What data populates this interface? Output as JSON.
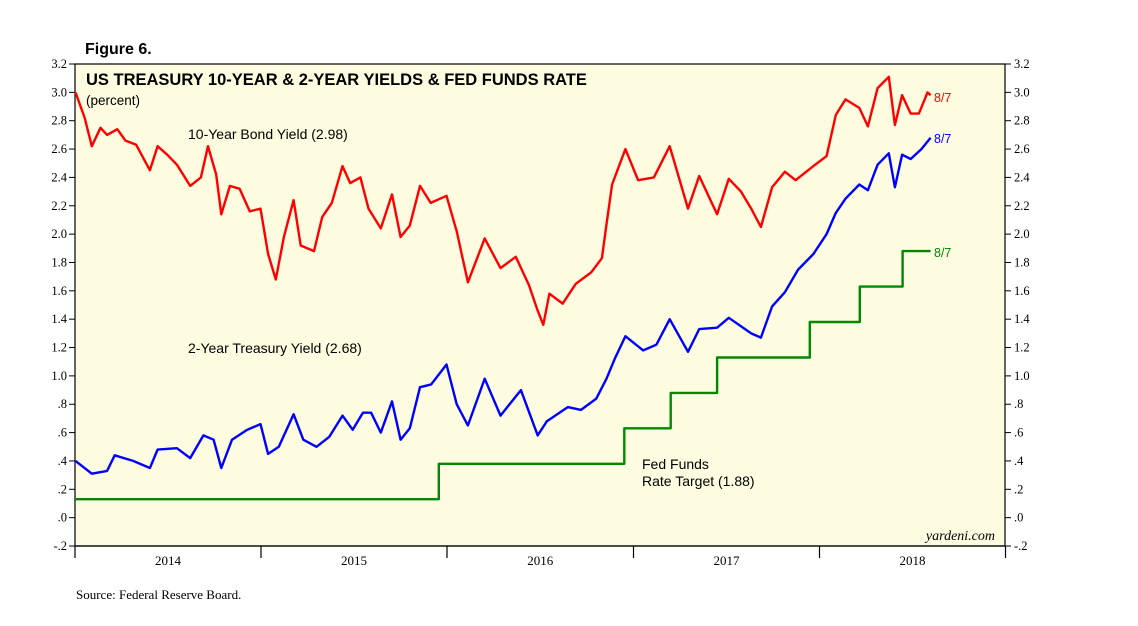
{
  "figure_label": "Figure 6.",
  "source": "Source: Federal Reserve Board.",
  "watermark": "yardeni.com",
  "chart_data": {
    "type": "line",
    "title": "US TREASURY 10-YEAR & 2-YEAR YIELDS & FED FUNDS RATE",
    "subtitle": "(percent)",
    "x_ticks": [
      "2014",
      "2015",
      "2016",
      "2017",
      "2018"
    ],
    "xlim": [
      "2014-01-01",
      "2018-12-31"
    ],
    "ylim": [
      -0.2,
      3.2
    ],
    "y_ticks": [
      3.2,
      3.0,
      2.8,
      2.6,
      2.4,
      2.2,
      2.0,
      1.8,
      1.6,
      1.4,
      1.2,
      1.0,
      0.8,
      0.6,
      0.4,
      0.2,
      0.0,
      -0.2
    ],
    "y_tick_labels": [
      "3.2",
      "3.0",
      "2.8",
      "2.6",
      "2.4",
      "2.2",
      "2.0",
      "1.8",
      "1.6",
      "1.4",
      "1.2",
      "1.0",
      ".8",
      ".6",
      ".4",
      ".2",
      ".0",
      "-.2"
    ],
    "grid": false,
    "background_color": "#fdfce0",
    "series": [
      {
        "name": "10-Year Bond Yield (2.98)",
        "color": "#ff0000",
        "end_label": "8/7",
        "points": [
          [
            "2014-01-02",
            3.0
          ],
          [
            "2014-01-20",
            2.82
          ],
          [
            "2014-02-03",
            2.62
          ],
          [
            "2014-02-20",
            2.75
          ],
          [
            "2014-03-05",
            2.7
          ],
          [
            "2014-03-25",
            2.74
          ],
          [
            "2014-04-10",
            2.66
          ],
          [
            "2014-05-01",
            2.63
          ],
          [
            "2014-05-28",
            2.45
          ],
          [
            "2014-06-12",
            2.62
          ],
          [
            "2014-07-01",
            2.56
          ],
          [
            "2014-07-20",
            2.49
          ],
          [
            "2014-08-15",
            2.34
          ],
          [
            "2014-09-05",
            2.4
          ],
          [
            "2014-09-19",
            2.62
          ],
          [
            "2014-10-05",
            2.42
          ],
          [
            "2014-10-15",
            2.14
          ],
          [
            "2014-11-01",
            2.34
          ],
          [
            "2014-11-20",
            2.32
          ],
          [
            "2014-12-10",
            2.16
          ],
          [
            "2014-12-31",
            2.18
          ],
          [
            "2015-01-15",
            1.86
          ],
          [
            "2015-01-30",
            1.68
          ],
          [
            "2015-02-15",
            1.98
          ],
          [
            "2015-03-06",
            2.24
          ],
          [
            "2015-03-20",
            1.92
          ],
          [
            "2015-04-15",
            1.88
          ],
          [
            "2015-05-01",
            2.12
          ],
          [
            "2015-05-20",
            2.22
          ],
          [
            "2015-06-10",
            2.48
          ],
          [
            "2015-06-25",
            2.36
          ],
          [
            "2015-07-15",
            2.4
          ],
          [
            "2015-07-31",
            2.18
          ],
          [
            "2015-08-24",
            2.04
          ],
          [
            "2015-09-15",
            2.28
          ],
          [
            "2015-10-02",
            1.98
          ],
          [
            "2015-10-20",
            2.06
          ],
          [
            "2015-11-09",
            2.34
          ],
          [
            "2015-11-30",
            2.22
          ],
          [
            "2015-12-31",
            2.27
          ],
          [
            "2016-01-20",
            2.02
          ],
          [
            "2016-02-11",
            1.66
          ],
          [
            "2016-03-15",
            1.97
          ],
          [
            "2016-04-15",
            1.76
          ],
          [
            "2016-05-15",
            1.84
          ],
          [
            "2016-06-10",
            1.64
          ],
          [
            "2016-06-27",
            1.46
          ],
          [
            "2016-07-08",
            1.36
          ],
          [
            "2016-07-20",
            1.58
          ],
          [
            "2016-08-15",
            1.51
          ],
          [
            "2016-09-10",
            1.65
          ],
          [
            "2016-10-10",
            1.73
          ],
          [
            "2016-10-31",
            1.83
          ],
          [
            "2016-11-09",
            2.07
          ],
          [
            "2016-11-20",
            2.35
          ],
          [
            "2016-12-16",
            2.6
          ],
          [
            "2017-01-10",
            2.38
          ],
          [
            "2017-02-10",
            2.4
          ],
          [
            "2017-03-13",
            2.62
          ],
          [
            "2017-04-18",
            2.18
          ],
          [
            "2017-05-10",
            2.41
          ],
          [
            "2017-06-14",
            2.14
          ],
          [
            "2017-07-07",
            2.39
          ],
          [
            "2017-07-31",
            2.3
          ],
          [
            "2017-08-20",
            2.18
          ],
          [
            "2017-09-08",
            2.05
          ],
          [
            "2017-09-30",
            2.33
          ],
          [
            "2017-10-25",
            2.44
          ],
          [
            "2017-11-15",
            2.38
          ],
          [
            "2017-12-20",
            2.48
          ],
          [
            "2018-01-15",
            2.55
          ],
          [
            "2018-02-02",
            2.84
          ],
          [
            "2018-02-21",
            2.95
          ],
          [
            "2018-03-20",
            2.89
          ],
          [
            "2018-04-06",
            2.76
          ],
          [
            "2018-04-25",
            3.03
          ],
          [
            "2018-05-17",
            3.11
          ],
          [
            "2018-05-29",
            2.77
          ],
          [
            "2018-06-12",
            2.98
          ],
          [
            "2018-06-29",
            2.85
          ],
          [
            "2018-07-15",
            2.85
          ],
          [
            "2018-08-01",
            3.0
          ],
          [
            "2018-08-07",
            2.98
          ]
        ]
      },
      {
        "name": "2-Year Treasury Yield (2.68)",
        "color": "#0000ff",
        "end_label": "8/7",
        "points": [
          [
            "2014-01-02",
            0.4
          ],
          [
            "2014-02-03",
            0.31
          ],
          [
            "2014-03-05",
            0.33
          ],
          [
            "2014-03-20",
            0.44
          ],
          [
            "2014-04-25",
            0.4
          ],
          [
            "2014-05-28",
            0.35
          ],
          [
            "2014-06-12",
            0.48
          ],
          [
            "2014-07-20",
            0.49
          ],
          [
            "2014-08-15",
            0.42
          ],
          [
            "2014-09-10",
            0.58
          ],
          [
            "2014-09-30",
            0.55
          ],
          [
            "2014-10-15",
            0.35
          ],
          [
            "2014-11-05",
            0.55
          ],
          [
            "2014-12-05",
            0.62
          ],
          [
            "2014-12-31",
            0.66
          ],
          [
            "2015-01-15",
            0.45
          ],
          [
            "2015-02-05",
            0.5
          ],
          [
            "2015-03-06",
            0.73
          ],
          [
            "2015-03-25",
            0.55
          ],
          [
            "2015-04-20",
            0.5
          ],
          [
            "2015-05-15",
            0.57
          ],
          [
            "2015-06-10",
            0.72
          ],
          [
            "2015-06-30",
            0.62
          ],
          [
            "2015-07-20",
            0.74
          ],
          [
            "2015-08-05",
            0.74
          ],
          [
            "2015-08-24",
            0.6
          ],
          [
            "2015-09-15",
            0.82
          ],
          [
            "2015-10-02",
            0.55
          ],
          [
            "2015-10-20",
            0.63
          ],
          [
            "2015-11-09",
            0.92
          ],
          [
            "2015-12-01",
            0.94
          ],
          [
            "2015-12-31",
            1.08
          ],
          [
            "2016-01-20",
            0.8
          ],
          [
            "2016-02-11",
            0.65
          ],
          [
            "2016-03-15",
            0.98
          ],
          [
            "2016-04-15",
            0.72
          ],
          [
            "2016-05-25",
            0.9
          ],
          [
            "2016-06-27",
            0.58
          ],
          [
            "2016-07-15",
            0.68
          ],
          [
            "2016-08-25",
            0.78
          ],
          [
            "2016-09-20",
            0.76
          ],
          [
            "2016-10-20",
            0.84
          ],
          [
            "2016-11-09",
            0.98
          ],
          [
            "2016-11-25",
            1.12
          ],
          [
            "2016-12-16",
            1.28
          ],
          [
            "2017-01-20",
            1.18
          ],
          [
            "2017-02-15",
            1.22
          ],
          [
            "2017-03-13",
            1.4
          ],
          [
            "2017-04-18",
            1.17
          ],
          [
            "2017-05-10",
            1.33
          ],
          [
            "2017-06-14",
            1.34
          ],
          [
            "2017-07-07",
            1.41
          ],
          [
            "2017-08-20",
            1.3
          ],
          [
            "2017-09-08",
            1.27
          ],
          [
            "2017-09-30",
            1.49
          ],
          [
            "2017-10-25",
            1.59
          ],
          [
            "2017-11-20",
            1.75
          ],
          [
            "2017-12-20",
            1.86
          ],
          [
            "2018-01-15",
            2.0
          ],
          [
            "2018-02-02",
            2.15
          ],
          [
            "2018-02-21",
            2.25
          ],
          [
            "2018-03-20",
            2.35
          ],
          [
            "2018-04-06",
            2.31
          ],
          [
            "2018-04-25",
            2.49
          ],
          [
            "2018-05-17",
            2.57
          ],
          [
            "2018-05-29",
            2.33
          ],
          [
            "2018-06-12",
            2.56
          ],
          [
            "2018-06-29",
            2.53
          ],
          [
            "2018-07-20",
            2.6
          ],
          [
            "2018-08-07",
            2.68
          ]
        ]
      },
      {
        "name": "Fed Funds Rate Target (1.88)",
        "color": "#008800",
        "end_label": "8/7",
        "step": true,
        "points": [
          [
            "2014-01-01",
            0.13
          ],
          [
            "2015-12-16",
            0.38
          ],
          [
            "2016-12-14",
            0.63
          ],
          [
            "2017-03-15",
            0.88
          ],
          [
            "2017-06-14",
            1.13
          ],
          [
            "2017-12-13",
            1.38
          ],
          [
            "2018-03-21",
            1.63
          ],
          [
            "2018-06-13",
            1.88
          ],
          [
            "2018-08-07",
            1.88
          ]
        ]
      }
    ],
    "annotations": [
      {
        "text": "10-Year Bond Yield (2.98)",
        "color": "#000000"
      },
      {
        "text": "2-Year Treasury Yield (2.68)",
        "color": "#000000"
      },
      {
        "text": "Fed Funds",
        "color": "#000000"
      },
      {
        "text": "Rate Target (1.88)",
        "color": "#000000"
      }
    ]
  }
}
